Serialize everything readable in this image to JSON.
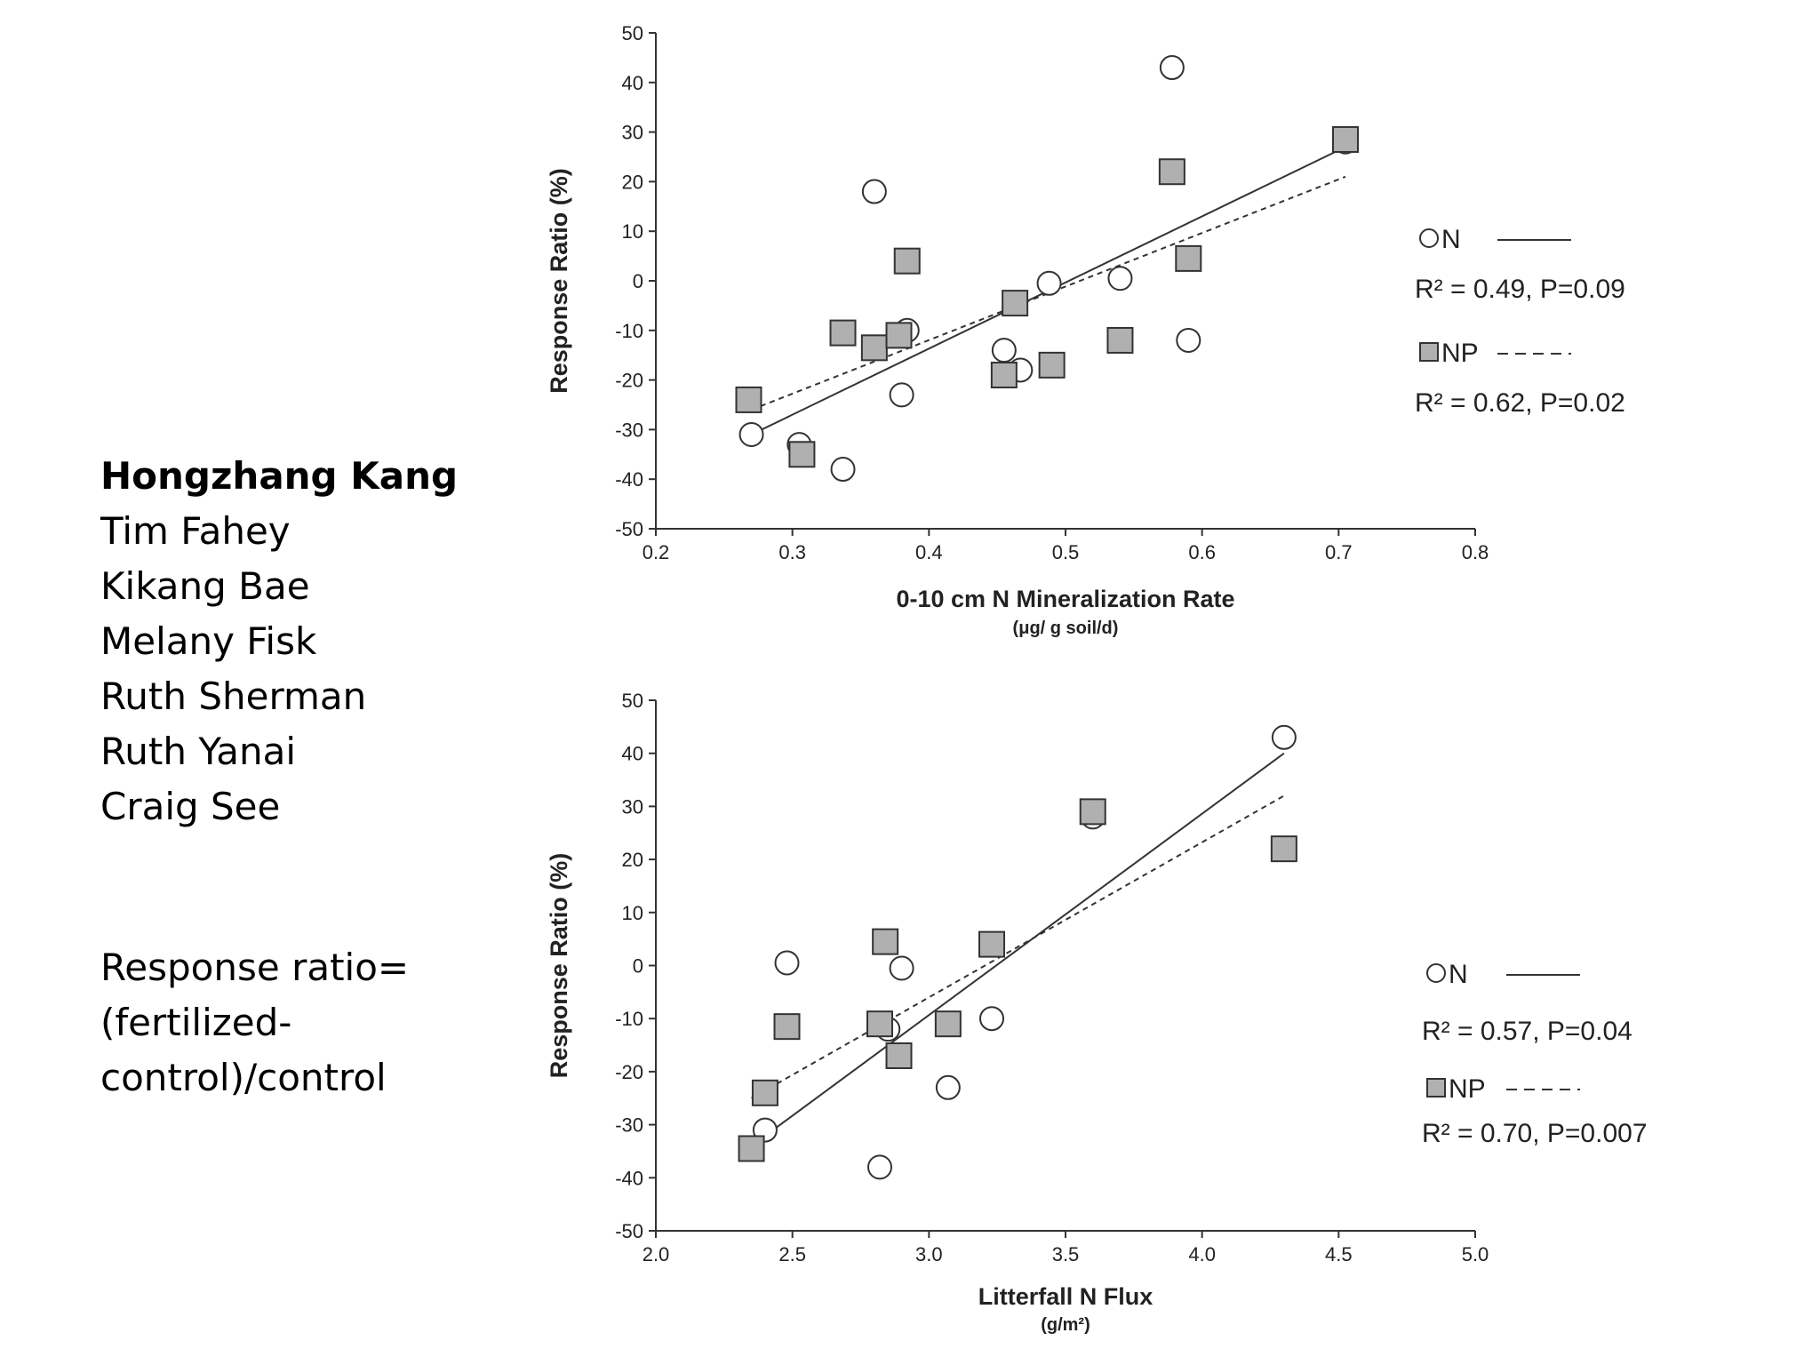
{
  "authors": [
    "Hongzhang Kang",
    "Tim Fahey",
    "Kikang Bae",
    "Melany Fisk",
    "Ruth Sherman",
    "Ruth Yanai",
    "Craig See"
  ],
  "note_lines": [
    "Response ratio=",
    "(fertilized-",
    "control)/control"
  ],
  "colors": {
    "marker_fill": "#b0b0b0",
    "marker_stroke": "#333333",
    "line": "#333333"
  },
  "chart_data": [
    {
      "type": "scatter",
      "xlabel": "0-10 cm N Mineralization Rate",
      "xunit": "(μg/ g soil/d)",
      "ylabel": "Response Ratio (%)",
      "xlim": [
        0.2,
        0.8
      ],
      "ylim": [
        -50,
        50
      ],
      "x_ticks": [
        "0.2",
        "0.3",
        "0.4",
        "0.5",
        "0.6",
        "0.7",
        "0.8"
      ],
      "y_ticks": [
        "50",
        "40",
        "30",
        "20",
        "10",
        "0",
        "-10",
        "-20",
        "-30",
        "-40",
        "-50"
      ],
      "series": [
        {
          "name": "N",
          "marker": "circle",
          "line_style": "solid",
          "stat": "R² = 0.49, P=0.09",
          "points": [
            [
              0.27,
              -31
            ],
            [
              0.305,
              -33
            ],
            [
              0.337,
              -38
            ],
            [
              0.36,
              18
            ],
            [
              0.38,
              -23
            ],
            [
              0.384,
              -10
            ],
            [
              0.455,
              -14
            ],
            [
              0.467,
              -18
            ],
            [
              0.488,
              -0.5
            ],
            [
              0.54,
              0.5
            ],
            [
              0.578,
              43
            ],
            [
              0.59,
              -12
            ],
            [
              0.705,
              28
            ]
          ],
          "fit": [
            [
              0.27,
              -31
            ],
            [
              0.705,
              27
            ]
          ]
        },
        {
          "name": "NP",
          "marker": "square",
          "line_style": "dashed",
          "stat": "R² = 0.62, P=0.02",
          "points": [
            [
              0.268,
              -24
            ],
            [
              0.307,
              -35
            ],
            [
              0.337,
              -10.5
            ],
            [
              0.36,
              -13.5
            ],
            [
              0.378,
              -11
            ],
            [
              0.384,
              4
            ],
            [
              0.455,
              -19
            ],
            [
              0.463,
              -4.5
            ],
            [
              0.49,
              -17
            ],
            [
              0.54,
              -12
            ],
            [
              0.578,
              22
            ],
            [
              0.59,
              4.5
            ],
            [
              0.705,
              28.5
            ]
          ],
          "fit": [
            [
              0.27,
              -26
            ],
            [
              0.705,
              21
            ]
          ]
        }
      ]
    },
    {
      "type": "scatter",
      "xlabel": "Litterfall N Flux",
      "xunit": "(g/m²)",
      "ylabel": "Response Ratio (%)",
      "xlim": [
        2.0,
        5.0
      ],
      "ylim": [
        -50,
        50
      ],
      "x_ticks": [
        "2.0",
        "2.5",
        "3.0",
        "3.5",
        "4.0",
        "4.5",
        "5.0"
      ],
      "y_ticks": [
        "50",
        "40",
        "30",
        "20",
        "10",
        "0",
        "-10",
        "-20",
        "-30",
        "-40",
        "-50"
      ],
      "series": [
        {
          "name": "N",
          "marker": "circle",
          "line_style": "solid",
          "stat": "R² = 0.57, P=0.04",
          "points": [
            [
              2.4,
              -31
            ],
            [
              2.48,
              0.5
            ],
            [
              2.82,
              -38
            ],
            [
              2.85,
              -12
            ],
            [
              2.9,
              -0.5
            ],
            [
              3.07,
              -23
            ],
            [
              3.23,
              -10
            ],
            [
              3.6,
              28
            ],
            [
              4.3,
              43
            ]
          ],
          "fit": [
            [
              2.35,
              -34
            ],
            [
              4.3,
              40
            ]
          ]
        },
        {
          "name": "NP",
          "marker": "square",
          "line_style": "dashed",
          "stat": "R² = 0.70, P=0.007",
          "points": [
            [
              2.35,
              -34.5
            ],
            [
              2.4,
              -24
            ],
            [
              2.48,
              -11.5
            ],
            [
              2.82,
              -11
            ],
            [
              2.84,
              4.5
            ],
            [
              2.89,
              -17
            ],
            [
              3.07,
              -11
            ],
            [
              3.23,
              4
            ],
            [
              3.6,
              29
            ],
            [
              4.3,
              22
            ]
          ],
          "fit": [
            [
              2.35,
              -25
            ],
            [
              4.3,
              32
            ]
          ]
        }
      ]
    }
  ]
}
